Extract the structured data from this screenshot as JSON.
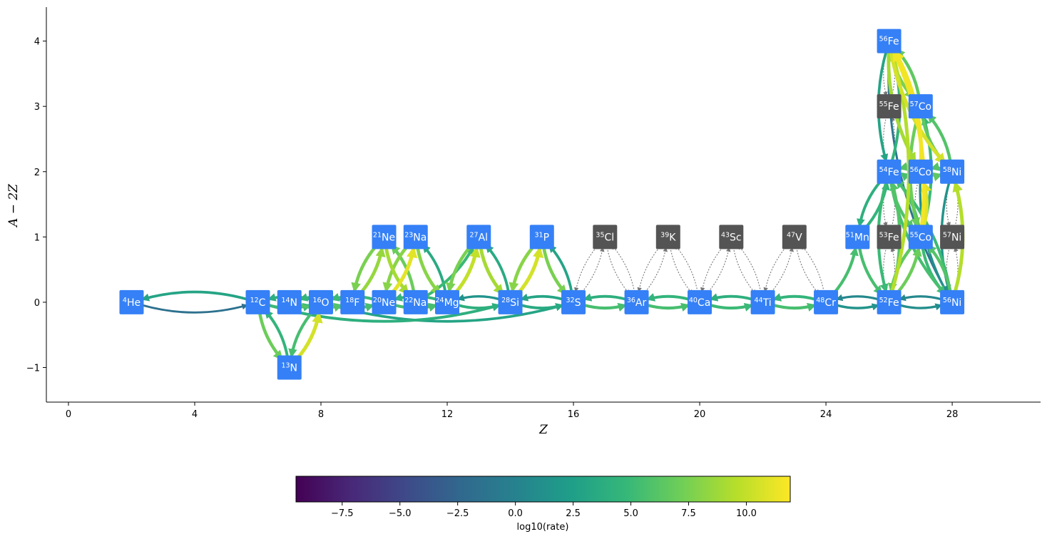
{
  "chart_data": {
    "type": "network",
    "xlabel": "Z",
    "ylabel": "A − 2Z",
    "x_ticks": [
      0,
      4,
      8,
      12,
      16,
      20,
      24,
      28
    ],
    "y_ticks": [
      -1,
      0,
      1,
      2,
      3,
      4
    ],
    "xlim": [
      -0.7,
      30.8
    ],
    "ylim": [
      -1.53,
      4.52
    ],
    "colorbar": {
      "label": "log10(rate)",
      "range": [
        -9.5,
        11.9
      ],
      "ticks": [
        -7.5,
        -5.0,
        -2.5,
        0.0,
        2.5,
        5.0,
        7.5,
        10.0
      ],
      "tick_labels": [
        "−7.5",
        "−5.0",
        "−2.5",
        "0.0",
        "2.5",
        "5.0",
        "7.5",
        "10.0"
      ],
      "colormap": "viridis"
    },
    "colors": {
      "main_node": "#3580f6",
      "secondary_node": "#545454",
      "approx_link": "#777777"
    },
    "nodes": [
      {
        "id": "he4",
        "mass": "4",
        "el": "He",
        "z": 2,
        "n": 2,
        "kind": "main"
      },
      {
        "id": "c12",
        "mass": "12",
        "el": "C",
        "z": 6,
        "n": 6,
        "kind": "main"
      },
      {
        "id": "n13",
        "mass": "13",
        "el": "N",
        "z": 7,
        "n": 6,
        "kind": "main"
      },
      {
        "id": "n14",
        "mass": "14",
        "el": "N",
        "z": 7,
        "n": 7,
        "kind": "main"
      },
      {
        "id": "o16",
        "mass": "16",
        "el": "O",
        "z": 8,
        "n": 8,
        "kind": "main"
      },
      {
        "id": "f18",
        "mass": "18",
        "el": "F",
        "z": 9,
        "n": 9,
        "kind": "main"
      },
      {
        "id": "ne20",
        "mass": "20",
        "el": "Ne",
        "z": 10,
        "n": 10,
        "kind": "main"
      },
      {
        "id": "ne21",
        "mass": "21",
        "el": "Ne",
        "z": 10,
        "n": 11,
        "kind": "main"
      },
      {
        "id": "na22",
        "mass": "22",
        "el": "Na",
        "z": 11,
        "n": 11,
        "kind": "main"
      },
      {
        "id": "na23",
        "mass": "23",
        "el": "Na",
        "z": 11,
        "n": 12,
        "kind": "main"
      },
      {
        "id": "mg24",
        "mass": "24",
        "el": "Mg",
        "z": 12,
        "n": 12,
        "kind": "main"
      },
      {
        "id": "al27",
        "mass": "27",
        "el": "Al",
        "z": 13,
        "n": 14,
        "kind": "main"
      },
      {
        "id": "si28",
        "mass": "28",
        "el": "Si",
        "z": 14,
        "n": 14,
        "kind": "main"
      },
      {
        "id": "p31",
        "mass": "31",
        "el": "P",
        "z": 15,
        "n": 16,
        "kind": "main"
      },
      {
        "id": "s32",
        "mass": "32",
        "el": "S",
        "z": 16,
        "n": 16,
        "kind": "main"
      },
      {
        "id": "cl35",
        "mass": "35",
        "el": "Cl",
        "z": 17,
        "n": 18,
        "kind": "secondary"
      },
      {
        "id": "ar36",
        "mass": "36",
        "el": "Ar",
        "z": 18,
        "n": 18,
        "kind": "main"
      },
      {
        "id": "k39",
        "mass": "39",
        "el": "K",
        "z": 19,
        "n": 20,
        "kind": "secondary"
      },
      {
        "id": "ca40",
        "mass": "40",
        "el": "Ca",
        "z": 20,
        "n": 20,
        "kind": "main"
      },
      {
        "id": "sc43",
        "mass": "43",
        "el": "Sc",
        "z": 21,
        "n": 22,
        "kind": "secondary"
      },
      {
        "id": "ti44",
        "mass": "44",
        "el": "Ti",
        "z": 22,
        "n": 22,
        "kind": "main"
      },
      {
        "id": "v47",
        "mass": "47",
        "el": "V",
        "z": 23,
        "n": 24,
        "kind": "secondary"
      },
      {
        "id": "cr48",
        "mass": "48",
        "el": "Cr",
        "z": 24,
        "n": 24,
        "kind": "main"
      },
      {
        "id": "mn51",
        "mass": "51",
        "el": "Mn",
        "z": 25,
        "n": 26,
        "kind": "main"
      },
      {
        "id": "fe52",
        "mass": "52",
        "el": "Fe",
        "z": 26,
        "n": 26,
        "kind": "main"
      },
      {
        "id": "fe53",
        "mass": "53",
        "el": "Fe",
        "z": 26,
        "n": 27,
        "kind": "secondary"
      },
      {
        "id": "fe54",
        "mass": "54",
        "el": "Fe",
        "z": 26,
        "n": 28,
        "kind": "main"
      },
      {
        "id": "fe55",
        "mass": "55",
        "el": "Fe",
        "z": 26,
        "n": 29,
        "kind": "secondary"
      },
      {
        "id": "fe56",
        "mass": "56",
        "el": "Fe",
        "z": 26,
        "n": 30,
        "kind": "main"
      },
      {
        "id": "co55",
        "mass": "55",
        "el": "Co",
        "z": 27,
        "n": 28,
        "kind": "main"
      },
      {
        "id": "co56",
        "mass": "56",
        "el": "Co",
        "z": 27,
        "n": 29,
        "kind": "main"
      },
      {
        "id": "co57",
        "mass": "57",
        "el": "Co",
        "z": 27,
        "n": 30,
        "kind": "main"
      },
      {
        "id": "ni56",
        "mass": "56",
        "el": "Ni",
        "z": 28,
        "n": 28,
        "kind": "main"
      },
      {
        "id": "ni57",
        "mass": "57",
        "el": "Ni",
        "z": 28,
        "n": 29,
        "kind": "secondary"
      },
      {
        "id": "ni58",
        "mass": "58",
        "el": "Ni",
        "z": 28,
        "n": 30,
        "kind": "main"
      }
    ],
    "links": [
      {
        "from": "he4",
        "to": "c12",
        "rate": -1.5
      },
      {
        "from": "c12",
        "to": "he4",
        "rate": 3.0
      },
      {
        "from": "c12",
        "to": "n13",
        "rate": 7.0
      },
      {
        "from": "n13",
        "to": "c12",
        "rate": 4.5
      },
      {
        "from": "n13",
        "to": "o16",
        "rate": 10.5
      },
      {
        "from": "o16",
        "to": "n13",
        "rate": 5.5
      },
      {
        "from": "c12",
        "to": "o16",
        "rate": 5.0
      },
      {
        "from": "o16",
        "to": "c12",
        "rate": 4.0
      },
      {
        "from": "n14",
        "to": "f18",
        "rate": 6.0
      },
      {
        "from": "f18",
        "to": "n14",
        "rate": 4.5
      },
      {
        "from": "o16",
        "to": "ne20",
        "rate": 5.5
      },
      {
        "from": "ne20",
        "to": "o16",
        "rate": 5.0
      },
      {
        "from": "f18",
        "to": "ne21",
        "rate": 8.5
      },
      {
        "from": "ne21",
        "to": "f18",
        "rate": 7.5
      },
      {
        "from": "ne20",
        "to": "na23",
        "rate": 11.0
      },
      {
        "from": "na23",
        "to": "ne20",
        "rate": 8.0
      },
      {
        "from": "ne21",
        "to": "na22",
        "rate": 9.0
      },
      {
        "from": "na22",
        "to": "ne21",
        "rate": 7.0
      },
      {
        "from": "ne20",
        "to": "mg24",
        "rate": 5.5
      },
      {
        "from": "mg24",
        "to": "ne20",
        "rate": 4.5
      },
      {
        "from": "na23",
        "to": "mg24",
        "rate": 8.0
      },
      {
        "from": "mg24",
        "to": "na23",
        "rate": 3.5
      },
      {
        "from": "na22",
        "to": "mg24",
        "rate": 5.0
      },
      {
        "from": "mg24",
        "to": "al27",
        "rate": 10.0
      },
      {
        "from": "al27",
        "to": "mg24",
        "rate": 7.5
      },
      {
        "from": "al27",
        "to": "si28",
        "rate": 9.0
      },
      {
        "from": "si28",
        "to": "al27",
        "rate": 3.5
      },
      {
        "from": "mg24",
        "to": "si28",
        "rate": 4.0
      },
      {
        "from": "si28",
        "to": "mg24",
        "rate": 1.5
      },
      {
        "from": "na22",
        "to": "al27",
        "rate": 5.0
      },
      {
        "from": "si28",
        "to": "p31",
        "rate": 10.5
      },
      {
        "from": "p31",
        "to": "si28",
        "rate": 8.0
      },
      {
        "from": "p31",
        "to": "s32",
        "rate": 7.5
      },
      {
        "from": "s32",
        "to": "p31",
        "rate": 3.0
      },
      {
        "from": "si28",
        "to": "s32",
        "rate": 3.5
      },
      {
        "from": "s32",
        "to": "si28",
        "rate": 3.0
      },
      {
        "from": "c12",
        "to": "si28",
        "rate": 4.0
      },
      {
        "from": "o16",
        "to": "s32",
        "rate": 3.0
      },
      {
        "from": "s32",
        "to": "ar36",
        "rate": 5.5
      },
      {
        "from": "ar36",
        "to": "s32",
        "rate": 4.0
      },
      {
        "from": "ar36",
        "to": "ca40",
        "rate": 5.5
      },
      {
        "from": "ca40",
        "to": "ar36",
        "rate": 4.5
      },
      {
        "from": "ca40",
        "to": "ti44",
        "rate": 5.0
      },
      {
        "from": "ti44",
        "to": "ca40",
        "rate": 4.0
      },
      {
        "from": "ti44",
        "to": "cr48",
        "rate": 5.5
      },
      {
        "from": "cr48",
        "to": "ti44",
        "rate": 4.5
      },
      {
        "from": "cr48",
        "to": "fe52",
        "rate": 1.5
      },
      {
        "from": "fe52",
        "to": "cr48",
        "rate": 0.5
      },
      {
        "from": "fe52",
        "to": "ni56",
        "rate": 1.0
      },
      {
        "from": "ni56",
        "to": "fe52",
        "rate": 0.5
      },
      {
        "from": "cr48",
        "to": "mn51",
        "rate": 5.5
      },
      {
        "from": "mn51",
        "to": "fe52",
        "rate": 5.5
      },
      {
        "from": "mn51",
        "to": "fe54",
        "rate": 4.5
      },
      {
        "from": "fe54",
        "to": "mn51",
        "rate": 4.0
      },
      {
        "from": "fe52",
        "to": "fe54",
        "rate": 6.0
      },
      {
        "from": "fe54",
        "to": "fe52",
        "rate": 5.0
      },
      {
        "from": "fe52",
        "to": "co55",
        "rate": 7.0
      },
      {
        "from": "co55",
        "to": "fe52",
        "rate": 6.5
      },
      {
        "from": "fe54",
        "to": "ni56",
        "rate": 5.5
      },
      {
        "from": "ni56",
        "to": "fe54",
        "rate": 5.0
      },
      {
        "from": "fe54",
        "to": "co55",
        "rate": 6.0
      },
      {
        "from": "co55",
        "to": "fe54",
        "rate": 5.5
      },
      {
        "from": "co55",
        "to": "ni56",
        "rate": 5.0
      },
      {
        "from": "ni56",
        "to": "co55",
        "rate": 6.0
      },
      {
        "from": "fe54",
        "to": "fe56",
        "rate": 4.5
      },
      {
        "from": "fe56",
        "to": "fe54",
        "rate": 3.0
      },
      {
        "from": "fe56",
        "to": "co57",
        "rate": 7.5
      },
      {
        "from": "co57",
        "to": "fe56",
        "rate": 6.5
      },
      {
        "from": "co56",
        "to": "fe56",
        "rate": 11.5
      },
      {
        "from": "fe56",
        "to": "co56",
        "rate": 9.0
      },
      {
        "from": "co56",
        "to": "ni58",
        "rate": 6.5
      },
      {
        "from": "ni58",
        "to": "co56",
        "rate": 6.0
      },
      {
        "from": "fe54",
        "to": "co56",
        "rate": 5.5
      },
      {
        "from": "co56",
        "to": "fe54",
        "rate": 6.0
      },
      {
        "from": "co57",
        "to": "ni58",
        "rate": 6.5
      },
      {
        "from": "ni58",
        "to": "co57",
        "rate": 6.0
      },
      {
        "from": "co55",
        "to": "co57",
        "rate": 5.0
      },
      {
        "from": "co57",
        "to": "co55",
        "rate": 7.0
      },
      {
        "from": "fe52",
        "to": "fe56",
        "rate": 9.5
      },
      {
        "from": "ni56",
        "to": "ni58",
        "rate": 9.5
      },
      {
        "from": "ni58",
        "to": "ni56",
        "rate": 1.5
      },
      {
        "from": "co55",
        "to": "co56",
        "rate": 11.0
      },
      {
        "from": "fe56",
        "to": "ni56",
        "rate": -1.0
      },
      {
        "from": "co55",
        "to": "fe56",
        "rate": 11.5
      },
      {
        "from": "co56",
        "to": "ni56",
        "rate": 1.0
      },
      {
        "from": "fe56",
        "to": "ni58",
        "rate": 10.5
      }
    ],
    "approx_links": [
      {
        "from": "s32",
        "to": "cl35"
      },
      {
        "from": "cl35",
        "to": "s32"
      },
      {
        "from": "cl35",
        "to": "ar36"
      },
      {
        "from": "ar36",
        "to": "cl35"
      },
      {
        "from": "ar36",
        "to": "k39"
      },
      {
        "from": "k39",
        "to": "ar36"
      },
      {
        "from": "k39",
        "to": "ca40"
      },
      {
        "from": "ca40",
        "to": "k39"
      },
      {
        "from": "ca40",
        "to": "sc43"
      },
      {
        "from": "sc43",
        "to": "ca40"
      },
      {
        "from": "sc43",
        "to": "ti44"
      },
      {
        "from": "ti44",
        "to": "sc43"
      },
      {
        "from": "ti44",
        "to": "v47"
      },
      {
        "from": "v47",
        "to": "ti44"
      },
      {
        "from": "v47",
        "to": "cr48"
      },
      {
        "from": "cr48",
        "to": "v47"
      },
      {
        "from": "fe52",
        "to": "fe53"
      },
      {
        "from": "fe53",
        "to": "fe52"
      },
      {
        "from": "fe53",
        "to": "fe54"
      },
      {
        "from": "fe54",
        "to": "fe53"
      },
      {
        "from": "fe54",
        "to": "fe55"
      },
      {
        "from": "fe55",
        "to": "fe54"
      },
      {
        "from": "fe55",
        "to": "fe56"
      },
      {
        "from": "fe56",
        "to": "fe55"
      },
      {
        "from": "ni56",
        "to": "ni57"
      },
      {
        "from": "ni57",
        "to": "ni56"
      },
      {
        "from": "ni57",
        "to": "ni58"
      },
      {
        "from": "ni58",
        "to": "ni57"
      },
      {
        "from": "co55",
        "to": "co56"
      },
      {
        "from": "co56",
        "to": "co55"
      }
    ]
  }
}
